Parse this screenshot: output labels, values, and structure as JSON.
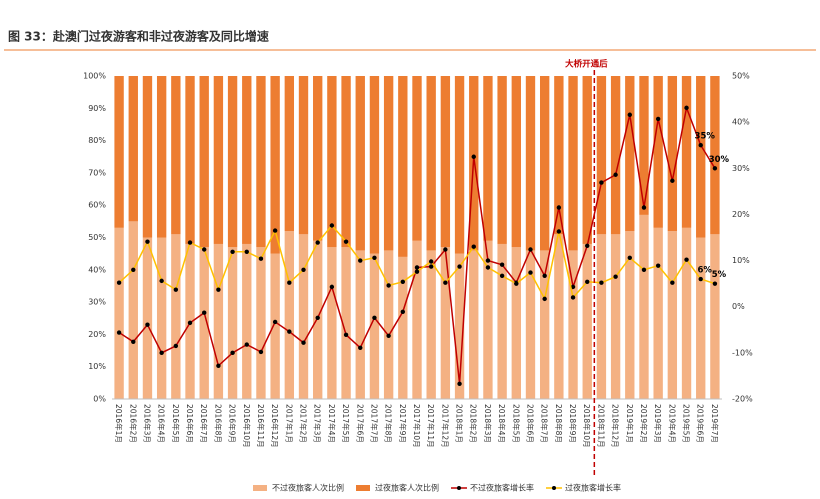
{
  "chart_data": {
    "type": "bar",
    "stacked": true,
    "title": "图 33：赴澳门过夜游客和非过夜游客及同比增速",
    "annotation": "大桥开通后",
    "annotation_after": "2018年10月",
    "categories": [
      "2016年1月",
      "2016年2月",
      "2016年3月",
      "2016年4月",
      "2016年5月",
      "2016年6月",
      "2016年7月",
      "2016年8月",
      "2016年9月",
      "2016年10月",
      "2016年11月",
      "2016年12月",
      "2017年1月",
      "2017年2月",
      "2017年3月",
      "2017年4月",
      "2017年5月",
      "2017年6月",
      "2017年7月",
      "2017年8月",
      "2017年9月",
      "2017年10月",
      "2017年11月",
      "2017年12月",
      "2018年1月",
      "2018年2月",
      "2018年3月",
      "2018年4月",
      "2018年5月",
      "2018年6月",
      "2018年7月",
      "2018年8月",
      "2018年9月",
      "2018年10月",
      "2018年11月",
      "2018年12月",
      "2019年1月",
      "2019年2月",
      "2019年3月",
      "2019年4月",
      "2019年5月",
      "2019年6月",
      "2019年7月"
    ],
    "ylim": [
      0,
      100
    ],
    "yticks": [
      {
        "value": 0,
        "label": "0%"
      },
      {
        "value": 10,
        "label": "10%"
      },
      {
        "value": 20,
        "label": "20%"
      },
      {
        "value": 30,
        "label": "30%"
      },
      {
        "value": 40,
        "label": "40%"
      },
      {
        "value": 50,
        "label": "50%"
      },
      {
        "value": 60,
        "label": "60%"
      },
      {
        "value": 70,
        "label": "70%"
      },
      {
        "value": 80,
        "label": "80%"
      },
      {
        "value": 90,
        "label": "90%"
      },
      {
        "value": 100,
        "label": "100%"
      }
    ],
    "y2lim": [
      -20,
      50
    ],
    "y2ticks": [
      {
        "value": -20,
        "label": "-20%"
      },
      {
        "value": -10,
        "label": "-10%"
      },
      {
        "value": 0,
        "label": "0%"
      },
      {
        "value": 10,
        "label": "10%"
      },
      {
        "value": 20,
        "label": "20%"
      },
      {
        "value": 30,
        "label": "30%"
      },
      {
        "value": 40,
        "label": "40%"
      },
      {
        "value": 50,
        "label": "50%"
      }
    ],
    "series": [
      {
        "name": "不过夜旅客人次比例",
        "type": "bar",
        "color": "#f4b183",
        "values": [
          53,
          55,
          50,
          50,
          51,
          48,
          47,
          48,
          47,
          48,
          47,
          45,
          52,
          51,
          49,
          47,
          47,
          46,
          45,
          46,
          44,
          49,
          46,
          47,
          45,
          46,
          49,
          48,
          47,
          46,
          46,
          51,
          46,
          48,
          51,
          51,
          52,
          57,
          53,
          52,
          53,
          50,
          51
        ]
      },
      {
        "name": "过夜旅客人次比例",
        "type": "bar",
        "color": "#ed7d31",
        "values": [
          47,
          45,
          50,
          50,
          49,
          52,
          53,
          52,
          53,
          52,
          53,
          55,
          48,
          49,
          51,
          53,
          53,
          54,
          55,
          54,
          56,
          51,
          54,
          53,
          55,
          54,
          51,
          52,
          53,
          54,
          54,
          49,
          54,
          52,
          49,
          49,
          48,
          43,
          47,
          48,
          47,
          50,
          49
        ]
      },
      {
        "name": "不过夜旅客增长率",
        "type": "line",
        "axis": "y2",
        "color": "#c00000",
        "values": [
          -5.6,
          -7.6,
          -3.9,
          -10,
          -8.5,
          -3.5,
          -1.3,
          -12.8,
          -10,
          -8.2,
          -9.8,
          -3.3,
          -5.4,
          -7.8,
          -2.4,
          4.3,
          -6.1,
          -8.9,
          -2.4,
          -6.3,
          -1.1,
          8.5,
          8.7,
          12.4,
          -16.7,
          32.5,
          10,
          9.1,
          5.2,
          12.4,
          6.7,
          21.5,
          4.3,
          13.2,
          26.9,
          28.6,
          41.6,
          21.5,
          40.7,
          27.3,
          43.1,
          35,
          30
        ],
        "value_labels": [
          null,
          null,
          null,
          null,
          null,
          null,
          null,
          null,
          null,
          null,
          null,
          null,
          null,
          null,
          null,
          null,
          null,
          null,
          null,
          null,
          null,
          null,
          null,
          null,
          null,
          null,
          null,
          null,
          null,
          null,
          null,
          null,
          null,
          null,
          null,
          null,
          null,
          null,
          null,
          null,
          null,
          "35%",
          "30%"
        ]
      },
      {
        "name": "过夜旅客增长率",
        "type": "line",
        "axis": "y2",
        "color": "#ffc000",
        "values": [
          5.2,
          8,
          14.1,
          5.6,
          3.7,
          13.9,
          12.4,
          3.7,
          11.9,
          11.9,
          10.4,
          16.5,
          5.2,
          8,
          13.9,
          17.6,
          14.1,
          10,
          10.6,
          4.6,
          5.4,
          7.6,
          9.8,
          5.2,
          8.7,
          13,
          8.5,
          6.7,
          5,
          7.4,
          1.7,
          16.3,
          2,
          5.4,
          5.2,
          6.5,
          10.6,
          8,
          8.9,
          5.2,
          10.2,
          6,
          5
        ],
        "value_labels": [
          null,
          null,
          null,
          null,
          null,
          null,
          null,
          null,
          null,
          null,
          null,
          null,
          null,
          null,
          null,
          null,
          null,
          null,
          null,
          null,
          null,
          null,
          null,
          null,
          null,
          null,
          null,
          null,
          null,
          null,
          null,
          null,
          null,
          null,
          null,
          null,
          null,
          null,
          null,
          null,
          null,
          "6%",
          "5%"
        ]
      }
    ]
  }
}
